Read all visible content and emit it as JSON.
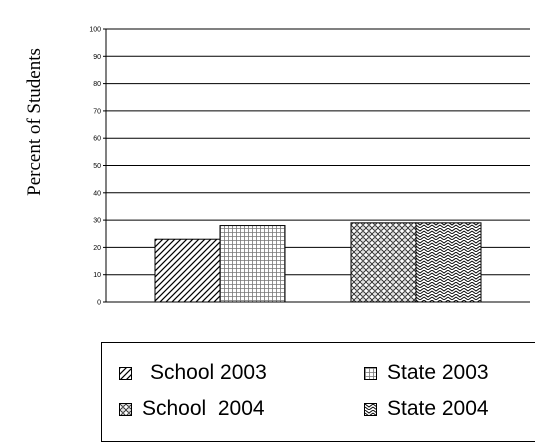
{
  "chart_data": {
    "type": "bar",
    "ylabel": "Percent of Students",
    "xlabel": "",
    "title": "",
    "ylim": [
      0,
      100
    ],
    "yticks": [
      0,
      10,
      20,
      30,
      40,
      50,
      60,
      70,
      80,
      90,
      100
    ],
    "grid": true,
    "legend_position": "bottom",
    "groups": [
      {
        "series": [
          {
            "name": "School 2003",
            "value": 23
          },
          {
            "name": "State 2003",
            "value": 28
          }
        ]
      },
      {
        "series": [
          {
            "name": "School 2004",
            "value": 29
          },
          {
            "name": "State 2004",
            "value": 29
          }
        ]
      }
    ]
  },
  "legend": {
    "items": [
      {
        "label": "School 2003"
      },
      {
        "label": "State 2003"
      },
      {
        "label": "School  2004"
      },
      {
        "label": "State 2004"
      }
    ]
  }
}
